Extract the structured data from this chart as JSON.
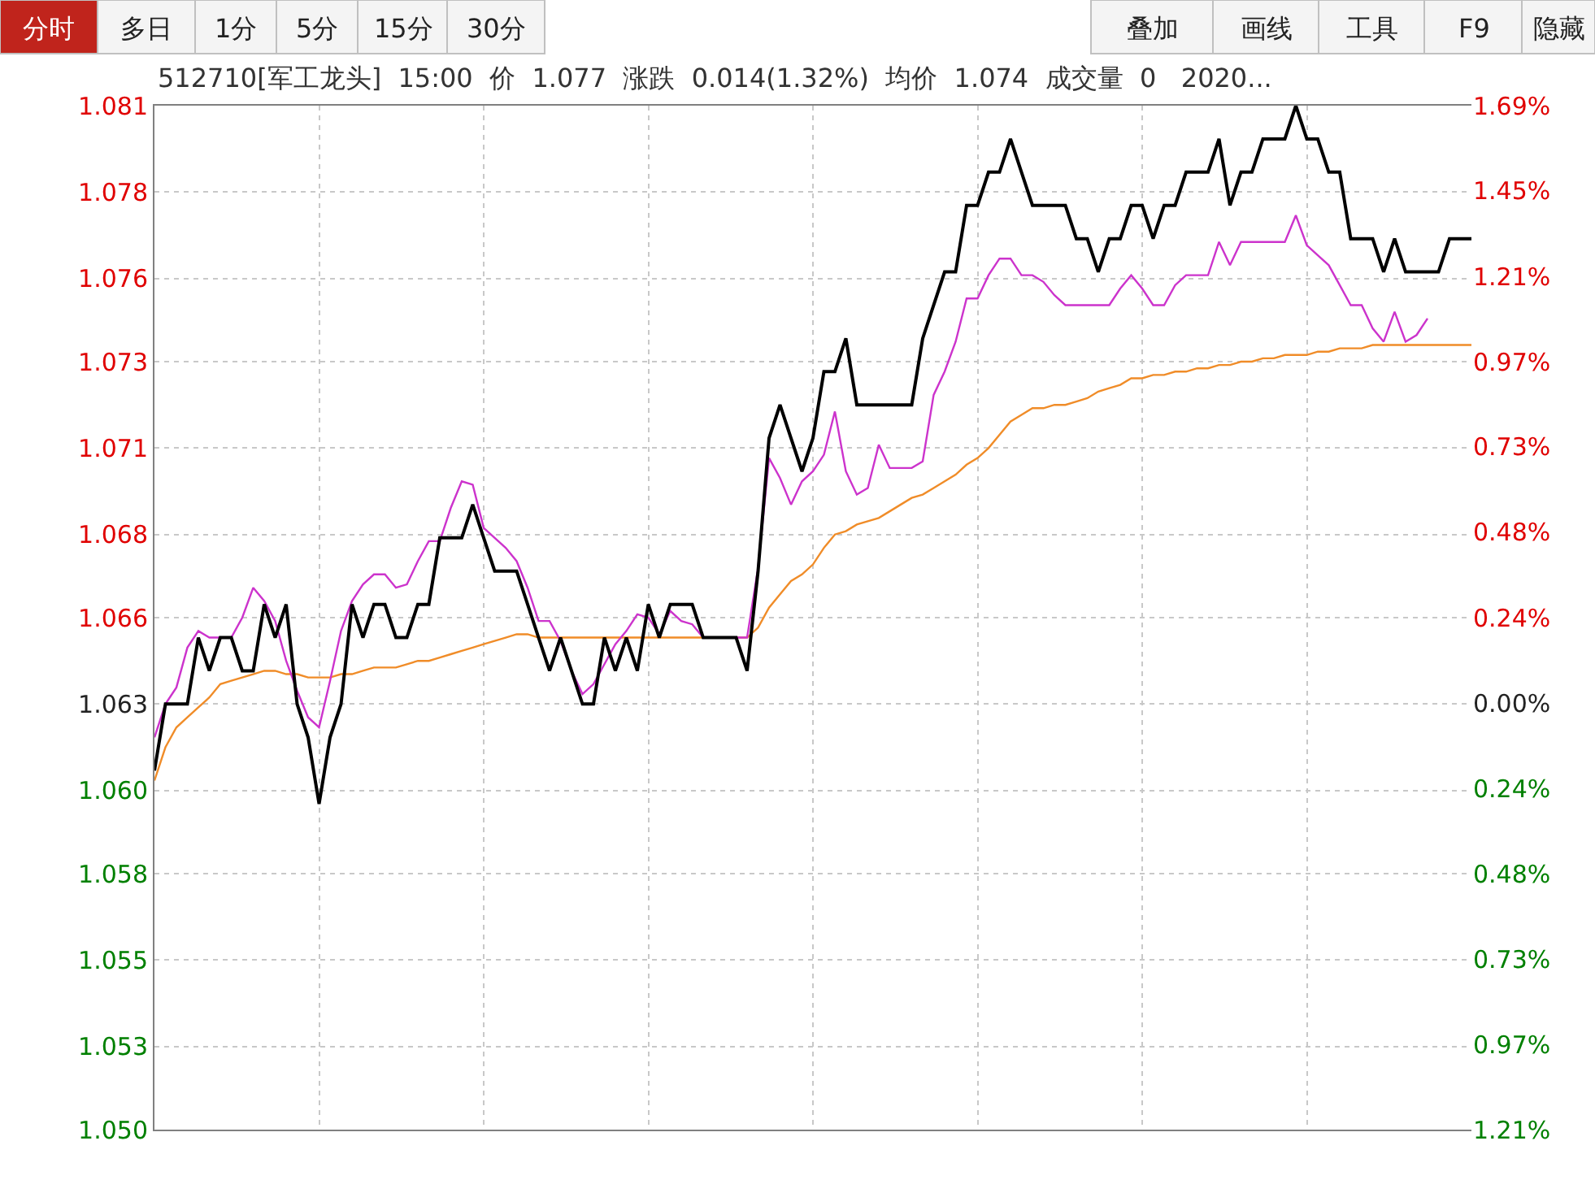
{
  "chart_data": {
    "type": "line",
    "title": "512710[军工龙头]  15:00  价  1.077  涨跌  0.014(1.32%)  均价  1.074  成交量  0   2020...",
    "annotations": [
      "分时",
      "多日",
      "1分",
      "5分",
      "15分",
      "30分",
      "叠加",
      "画线",
      "工具",
      "F9",
      "隐藏"
    ],
    "categories": [
      null,
      null,
      null,
      null,
      null,
      null,
      null,
      null,
      null,
      null,
      null,
      null,
      null,
      null,
      null,
      null,
      null,
      null,
      null,
      null,
      null,
      null,
      null,
      null,
      null,
      null,
      null,
      null,
      null,
      null,
      null,
      null,
      null,
      null,
      null,
      null,
      null,
      null,
      null,
      null,
      null,
      null,
      null,
      null,
      null,
      null,
      null,
      null,
      null,
      null,
      null,
      null,
      null,
      null,
      null,
      null,
      null,
      null,
      null,
      null,
      null,
      null,
      null,
      null,
      null,
      null,
      null,
      null,
      null,
      null,
      null,
      null,
      null,
      null,
      null,
      null,
      null,
      null,
      null,
      null,
      null,
      null,
      null,
      null,
      null,
      null,
      null,
      null,
      null,
      null,
      null,
      null,
      null,
      null,
      null,
      null,
      null,
      null,
      null,
      null,
      null,
      null,
      null,
      null,
      null,
      null,
      null,
      null,
      null,
      null,
      null,
      null,
      null,
      null,
      null,
      null,
      null,
      null,
      null,
      null,
      null
    ],
    "ylim": [
      1.0502,
      1.081
    ],
    "yticks": [
      {
        "value": 1.081,
        "label": "1.081"
      },
      {
        "value": 1.0784,
        "label": "1.078"
      },
      {
        "value": 1.0758,
        "label": "1.076"
      },
      {
        "value": 1.0733,
        "label": "1.073"
      },
      {
        "value": 1.0707,
        "label": "1.071"
      },
      {
        "value": 1.0681,
        "label": "1.068"
      },
      {
        "value": 1.0656,
        "label": "1.066"
      },
      {
        "value": 1.063,
        "label": "1.063"
      },
      {
        "value": 1.0604,
        "label": "1.060"
      },
      {
        "value": 1.0579,
        "label": "1.058"
      },
      {
        "value": 1.0553,
        "label": "1.055"
      },
      {
        "value": 1.0527,
        "label": "1.053"
      },
      {
        "value": 1.0502,
        "label": "1.050"
      }
    ],
    "y2lim": [
      -1.2071,
      1.69
    ],
    "y2ticks": [
      {
        "value": 1.69,
        "label": "1.69%"
      },
      {
        "value": 1.4486,
        "label": "1.45%"
      },
      {
        "value": 1.2071,
        "label": "1.21%"
      },
      {
        "value": 0.9657,
        "label": "0.97%"
      },
      {
        "value": 0.7251,
        "label": "0.73%"
      },
      {
        "value": 0.4829,
        "label": "0.48%"
      },
      {
        "value": 0.2414,
        "label": "0.24%"
      },
      {
        "value": 0,
        "label": "0.00%"
      },
      {
        "value": -0.2414,
        "label": "0.24%"
      },
      {
        "value": -0.4829,
        "label": "0.48%"
      },
      {
        "value": -0.7251,
        "label": "0.73%"
      },
      {
        "value": -0.9657,
        "label": "0.97%"
      },
      {
        "value": -1.2071,
        "label": "1.21%"
      }
    ],
    "grid": true,
    "marker": "none",
    "line_style": "solid",
    "series": [
      {
        "color": "#f08c28",
        "values": [
          1.0607,
          1.0617,
          1.0623,
          1.0626,
          1.0629,
          1.0632,
          1.0636,
          1.0637,
          1.0638,
          1.0639,
          1.064,
          1.064,
          1.0639,
          1.0639,
          1.0638,
          1.0638,
          1.0638,
          1.0639,
          1.0639,
          1.064,
          1.0641,
          1.0641,
          1.0641,
          1.0642,
          1.0643,
          1.0643,
          1.0644,
          1.0645,
          1.0646,
          1.0647,
          1.0648,
          1.0649,
          1.065,
          1.0651,
          1.0651,
          1.065,
          1.065,
          1.065,
          1.065,
          1.065,
          1.065,
          1.065,
          1.065,
          1.065,
          1.065,
          1.065,
          1.065,
          1.065,
          1.065,
          1.065,
          1.065,
          1.065,
          1.065,
          1.065,
          1.065,
          1.0653,
          1.0659,
          1.0663,
          1.0667,
          1.0669,
          1.0672,
          1.0677,
          1.0681,
          1.0682,
          1.0684,
          1.0685,
          1.0686,
          1.0688,
          1.069,
          1.0692,
          1.0693,
          1.0695,
          1.0697,
          1.0699,
          1.0702,
          1.0704,
          1.0707,
          1.0711,
          1.0715,
          1.0717,
          1.0719,
          1.0719,
          1.072,
          1.072,
          1.0721,
          1.0722,
          1.0724,
          1.0725,
          1.0726,
          1.0728,
          1.0728,
          1.0729,
          1.0729,
          1.073,
          1.073,
          1.0731,
          1.0731,
          1.0732,
          1.0732,
          1.0733,
          1.0733,
          1.0734,
          1.0734,
          1.0735,
          1.0735,
          1.0735,
          1.0736,
          1.0736,
          1.0737,
          1.0737,
          1.0737,
          1.0738,
          1.0738,
          1.0738,
          1.0738,
          1.0738,
          1.0738,
          1.0738,
          1.0738,
          1.0738,
          1.0738
        ]
      },
      {
        "color": "#cc33cc",
        "values": [
          1.062,
          1.063,
          1.0635,
          1.0647,
          1.0652,
          1.065,
          1.065,
          1.065,
          1.0656,
          1.0665,
          1.0661,
          1.0655,
          1.0643,
          1.0634,
          1.0626,
          1.0623,
          1.0637,
          1.0652,
          1.0661,
          1.0666,
          1.0669,
          1.0669,
          1.0665,
          1.0666,
          1.0673,
          1.0679,
          1.0679,
          1.0689,
          1.0697,
          1.0696,
          1.0683,
          1.068,
          1.0677,
          1.0673,
          1.0665,
          1.0655,
          1.0655,
          1.0649,
          1.064,
          1.0633,
          1.0636,
          1.0642,
          1.0648,
          1.0652,
          1.0657,
          1.0656,
          1.0651,
          1.0658,
          1.0655,
          1.0654,
          1.065,
          1.065,
          1.065,
          1.065,
          1.065,
          1.0671,
          1.0704,
          1.0698,
          1.069,
          1.0697,
          1.07,
          1.0705,
          1.0718,
          1.07,
          1.0693,
          1.0695,
          1.0708,
          1.0701,
          1.0701,
          1.0701,
          1.0703,
          1.0723,
          1.073,
          1.0739,
          1.0752,
          1.0752,
          1.0759,
          1.0764,
          1.0764,
          1.0759,
          1.0759,
          1.0757,
          1.0753,
          1.075,
          1.075,
          1.075,
          1.075,
          1.075,
          1.0755,
          1.0759,
          1.0755,
          1.075,
          1.075,
          1.0756,
          1.0759,
          1.0759,
          1.0759,
          1.0769,
          1.0762,
          1.0769,
          1.0769,
          1.0769,
          1.0769,
          1.0769,
          1.0777,
          1.0768,
          1.0765,
          1.0762,
          1.0756,
          1.075,
          1.075,
          1.0743,
          1.0739,
          1.0748,
          1.0739,
          1.0741,
          1.0746,
          null,
          null,
          null,
          null
        ]
      },
      {
        "color": "#000000",
        "values": [
          1.061,
          1.063,
          1.063,
          1.063,
          1.065,
          1.064,
          1.065,
          1.065,
          1.064,
          1.064,
          1.066,
          1.065,
          1.066,
          1.063,
          1.062,
          1.06,
          1.062,
          1.063,
          1.066,
          1.065,
          1.066,
          1.066,
          1.065,
          1.065,
          1.066,
          1.066,
          1.068,
          1.068,
          1.068,
          1.069,
          1.068,
          1.067,
          1.067,
          1.067,
          1.066,
          1.065,
          1.064,
          1.065,
          1.064,
          1.063,
          1.063,
          1.065,
          1.064,
          1.065,
          1.064,
          1.066,
          1.065,
          1.066,
          1.066,
          1.066,
          1.065,
          1.065,
          1.065,
          1.065,
          1.064,
          1.067,
          1.071,
          1.072,
          1.071,
          1.07,
          1.071,
          1.073,
          1.073,
          1.074,
          1.072,
          1.072,
          1.072,
          1.072,
          1.072,
          1.072,
          1.074,
          1.075,
          1.076,
          1.076,
          1.078,
          1.078,
          1.079,
          1.079,
          1.08,
          1.079,
          1.078,
          1.078,
          1.078,
          1.078,
          1.077,
          1.077,
          1.076,
          1.077,
          1.077,
          1.078,
          1.078,
          1.077,
          1.078,
          1.078,
          1.079,
          1.079,
          1.079,
          1.08,
          1.078,
          1.079,
          1.079,
          1.08,
          1.08,
          1.08,
          1.081,
          1.08,
          1.08,
          1.079,
          1.079,
          1.077,
          1.077,
          1.077,
          1.076,
          1.077,
          1.076,
          1.076,
          1.076,
          1.076,
          1.077,
          1.077,
          1.077
        ]
      }
    ]
  }
}
